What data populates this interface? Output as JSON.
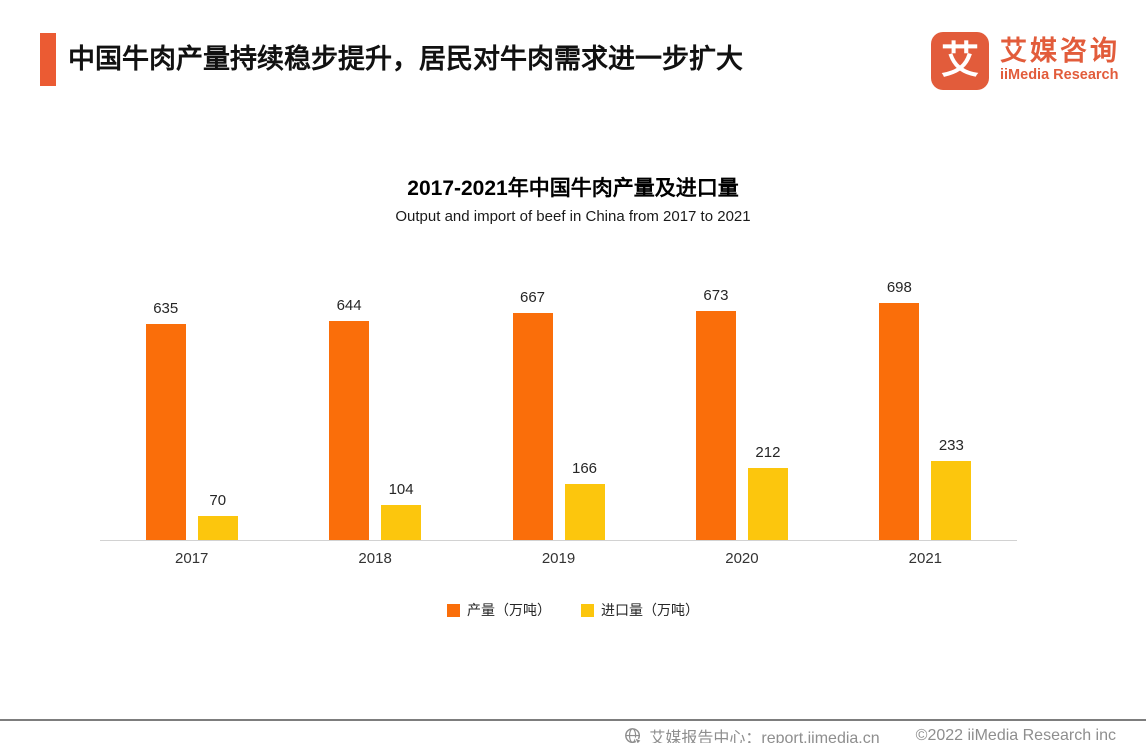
{
  "header": {
    "title": "中国牛肉产量持续稳步提升，居民对牛肉需求进一步扩大",
    "logo": {
      "icon_char": "艾",
      "name_cn": "艾媒咨询",
      "name_en": "iiMedia Research"
    }
  },
  "chart_data": {
    "type": "bar",
    "title": "2017-2021年中国牛肉产量及进口量",
    "subtitle": "Output and import of beef in China from 2017 to 2021",
    "categories": [
      "2017",
      "2018",
      "2019",
      "2020",
      "2021"
    ],
    "series": [
      {
        "name": "产量（万吨）",
        "color": "#FA6E0A",
        "values": [
          635,
          644,
          667,
          673,
          698
        ]
      },
      {
        "name": "进口量（万吨）",
        "color": "#FCC60D",
        "values": [
          70,
          104,
          166,
          212,
          233
        ]
      }
    ],
    "ylim": [
      0,
      760
    ],
    "grid": false,
    "axes_visible": "x-baseline-only",
    "data_labels": true,
    "legend_position": "bottom"
  },
  "footer": {
    "report_center": "艾媒报告中心：report.iimedia.cn",
    "copyright": "©2022  iiMedia Research inc"
  },
  "colors": {
    "accent_bar": "#EB5B33",
    "brand": "#E25C3B",
    "bar_output": "#FA6E0A",
    "bar_import": "#FCC60D",
    "footer_text": "#8E8E8E"
  }
}
